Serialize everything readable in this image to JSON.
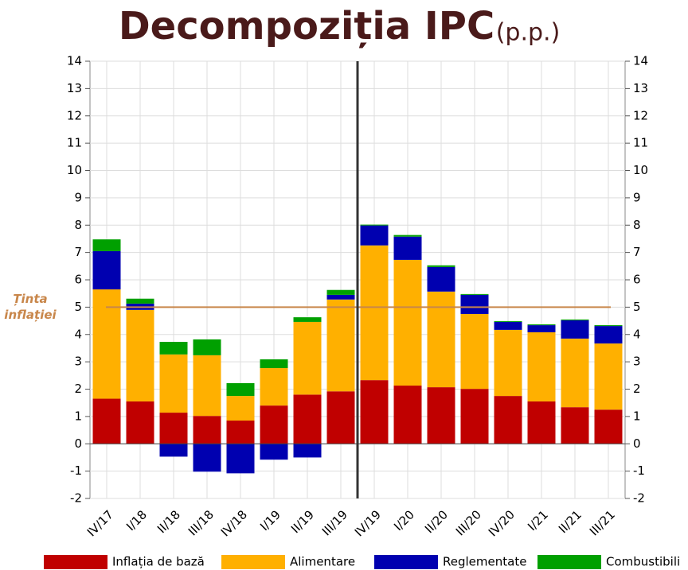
{
  "chart_data": {
    "type": "stacked_bar",
    "title": "Decompoziția IPC",
    "subtitle": "(p.p.)",
    "categories": [
      "IV/17",
      "I/18",
      "II/18",
      "III/18",
      "IV/18",
      "I/19",
      "II/19",
      "III/19",
      "IV/19",
      "I/20",
      "II/20",
      "III/20",
      "IV/20",
      "I/21",
      "II/21",
      "III/21"
    ],
    "series": [
      {
        "name": "Inflația de bază",
        "color": "#c00000",
        "values": [
          1.65,
          1.55,
          1.14,
          1.02,
          0.85,
          1.4,
          1.8,
          1.92,
          2.33,
          2.13,
          2.07,
          2.01,
          1.75,
          1.55,
          1.34,
          1.25
        ]
      },
      {
        "name": "Alimentare",
        "color": "#ffb000",
        "values": [
          4.0,
          3.35,
          2.13,
          2.22,
          0.9,
          1.37,
          2.66,
          3.36,
          4.93,
          4.6,
          3.5,
          2.74,
          2.42,
          2.53,
          2.51,
          2.42
        ]
      },
      {
        "name": "Reglementate",
        "color": "#0000b0",
        "values": [
          1.4,
          0.23,
          -0.47,
          -1.02,
          -1.08,
          -0.58,
          -0.5,
          0.17,
          0.73,
          0.85,
          0.9,
          0.7,
          0.29,
          0.26,
          0.67,
          0.64
        ]
      },
      {
        "name": "Combustibili",
        "color": "#00a000",
        "values": [
          0.43,
          0.18,
          0.46,
          0.58,
          0.47,
          0.32,
          0.17,
          0.18,
          0.03,
          0.06,
          0.06,
          0.03,
          0.03,
          0.03,
          0.03,
          0.03
        ]
      }
    ],
    "ylim": [
      -2,
      14
    ],
    "yticks": [
      -2,
      -1,
      0,
      1,
      2,
      3,
      4,
      5,
      6,
      7,
      8,
      9,
      10,
      11,
      12,
      13,
      14
    ],
    "y2lim": [
      -2,
      14
    ],
    "y2ticks": [
      -2,
      -1,
      0,
      1,
      2,
      3,
      4,
      5,
      6,
      7,
      8,
      9,
      10,
      11,
      12,
      13,
      14
    ],
    "grid": true,
    "target": {
      "value": 5,
      "label": [
        "Ținta",
        "inflației"
      ],
      "color": "#c8864a"
    }
  }
}
